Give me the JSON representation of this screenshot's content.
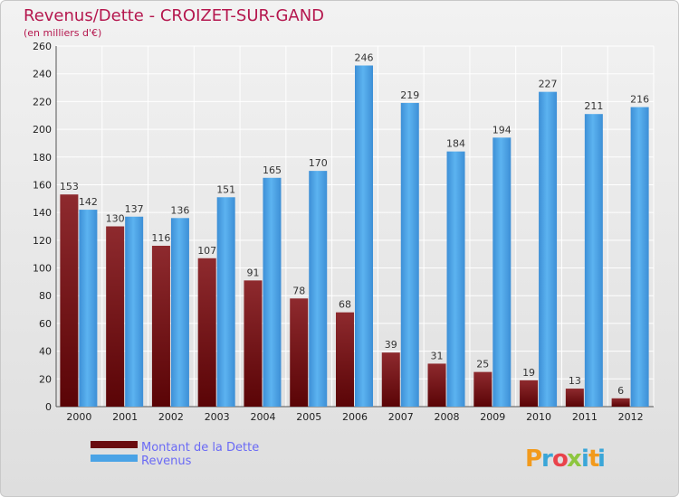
{
  "chart_data": {
    "type": "bar",
    "title": "Revenus/Dette - CROIZET-SUR-GAND",
    "subtitle": "(en milliers d'€)",
    "categories": [
      "2000",
      "2001",
      "2002",
      "2003",
      "2004",
      "2005",
      "2006",
      "2007",
      "2008",
      "2009",
      "2010",
      "2011",
      "2012"
    ],
    "series": [
      {
        "name": "Montant de la Dette",
        "color": "#7a1418",
        "values": [
          153,
          130,
          116,
          107,
          91,
          78,
          68,
          39,
          31,
          25,
          19,
          13,
          6
        ]
      },
      {
        "name": "Revenus",
        "color": "#4aa3e6",
        "values": [
          142,
          137,
          136,
          151,
          165,
          170,
          246,
          219,
          184,
          194,
          227,
          211,
          216
        ]
      }
    ],
    "ylim": [
      0,
      260
    ],
    "yticks": [
      0,
      20,
      40,
      60,
      80,
      100,
      120,
      140,
      160,
      180,
      200,
      220,
      240,
      260
    ],
    "grid": true,
    "legend_position": "bottom-left"
  },
  "logo": {
    "text": "Proxiti",
    "letters": [
      "P",
      "r",
      "o",
      "x",
      "i",
      "t",
      "i"
    ],
    "colors": [
      "#f29a1c",
      "#3aa6d8",
      "#e9434b",
      "#8dc63f",
      "#3aa6d8",
      "#f29a1c",
      "#3aa6d8"
    ]
  }
}
